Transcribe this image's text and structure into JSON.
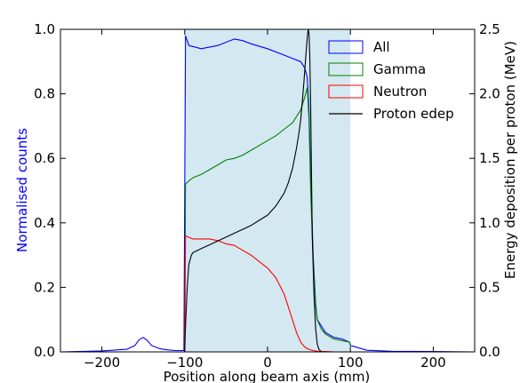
{
  "chart_data": {
    "type": "line",
    "xlabel": "Position along beam axis (mm)",
    "ylabel_left": "Normalised counts",
    "ylabel_right": "Energy deposition per proton (MeV)",
    "xlim": [
      -250,
      250
    ],
    "ylim_left": [
      0,
      1.0
    ],
    "ylim_right": [
      0,
      2.5
    ],
    "x_ticks": [
      -200,
      -100,
      0,
      100,
      200
    ],
    "x_tick_labels": [
      "−200",
      "−100",
      "0",
      "100",
      "200"
    ],
    "y_left_ticks": [
      0,
      0.2,
      0.4,
      0.6,
      0.8,
      1.0
    ],
    "y_left_tick_labels": [
      "0.0",
      "0.2",
      "0.4",
      "0.6",
      "0.8",
      "1.0"
    ],
    "y_right_ticks": [
      0,
      0.5,
      1.0,
      1.5,
      2.0,
      2.5
    ],
    "y_right_tick_labels": [
      "0.0",
      "0.5",
      "1.0",
      "1.5",
      "2.0",
      "2.5"
    ],
    "grid": false,
    "legend_position": "top-right",
    "shaded_region": {
      "x_start": -100,
      "x_end": 100,
      "color": "#d4e8f1"
    },
    "series": [
      {
        "name": "All",
        "axis": "left",
        "color": "#0000ff",
        "x": [
          -250,
          -200,
          -170,
          -160,
          -155,
          -150,
          -145,
          -140,
          -130,
          -120,
          -110,
          -101,
          -100,
          -99,
          -95,
          -80,
          -60,
          -40,
          -30,
          -20,
          0,
          20,
          30,
          40,
          45,
          48,
          50,
          52,
          55,
          58,
          60,
          65,
          70,
          80,
          90,
          99,
          100,
          120,
          150,
          200,
          250
        ],
        "y": [
          0.0,
          0.003,
          0.008,
          0.02,
          0.038,
          0.045,
          0.035,
          0.02,
          0.01,
          0.006,
          0.004,
          0.004,
          0.5,
          0.98,
          0.95,
          0.94,
          0.95,
          0.97,
          0.965,
          0.955,
          0.94,
          0.92,
          0.91,
          0.9,
          0.88,
          0.85,
          0.75,
          0.55,
          0.3,
          0.15,
          0.1,
          0.08,
          0.06,
          0.045,
          0.04,
          0.03,
          0.02,
          0.005,
          0.002,
          0.001,
          0.0
        ]
      },
      {
        "name": "Gamma",
        "axis": "left",
        "color": "#008000",
        "x": [
          -100,
          -99,
          -95,
          -90,
          -80,
          -70,
          -60,
          -50,
          -40,
          -30,
          -20,
          -10,
          0,
          10,
          20,
          30,
          40,
          45,
          48,
          50,
          52,
          55,
          58,
          60,
          65,
          70,
          80,
          90,
          99,
          100
        ],
        "y": [
          0.0,
          0.52,
          0.53,
          0.54,
          0.55,
          0.565,
          0.58,
          0.595,
          0.6,
          0.61,
          0.625,
          0.64,
          0.655,
          0.67,
          0.69,
          0.71,
          0.75,
          0.79,
          0.82,
          0.72,
          0.5,
          0.28,
          0.14,
          0.1,
          0.07,
          0.055,
          0.04,
          0.035,
          0.03,
          0.02
        ]
      },
      {
        "name": "Neutron",
        "axis": "left",
        "color": "#ff0000",
        "x": [
          -100,
          -99,
          -95,
          -90,
          -80,
          -70,
          -60,
          -50,
          -40,
          -30,
          -20,
          -10,
          0,
          10,
          20,
          25,
          30,
          35,
          40,
          45,
          50,
          55,
          60,
          70,
          80,
          100
        ],
        "y": [
          0.0,
          0.36,
          0.355,
          0.35,
          0.35,
          0.35,
          0.345,
          0.335,
          0.33,
          0.315,
          0.3,
          0.28,
          0.26,
          0.23,
          0.18,
          0.14,
          0.1,
          0.06,
          0.03,
          0.015,
          0.008,
          0.004,
          0.002,
          0.001,
          0.0,
          0.0
        ]
      },
      {
        "name": "Proton edep",
        "axis": "right",
        "color": "#000000",
        "x": [
          -100,
          -99,
          -97,
          -95,
          -92,
          -90,
          -80,
          -70,
          -60,
          -50,
          -40,
          -30,
          -20,
          -10,
          0,
          10,
          20,
          25,
          30,
          35,
          38,
          40,
          42,
          44,
          46,
          48,
          49,
          50,
          51,
          52,
          53,
          54,
          56,
          58,
          60,
          62,
          65
        ],
        "y": [
          0.0,
          0.2,
          0.5,
          0.68,
          0.75,
          0.77,
          0.8,
          0.83,
          0.86,
          0.89,
          0.92,
          0.95,
          0.98,
          1.02,
          1.06,
          1.13,
          1.23,
          1.31,
          1.42,
          1.58,
          1.7,
          1.8,
          1.94,
          2.1,
          2.28,
          2.44,
          2.5,
          2.47,
          2.3,
          1.9,
          1.4,
          0.9,
          0.45,
          0.18,
          0.06,
          0.02,
          0.0
        ]
      }
    ]
  }
}
